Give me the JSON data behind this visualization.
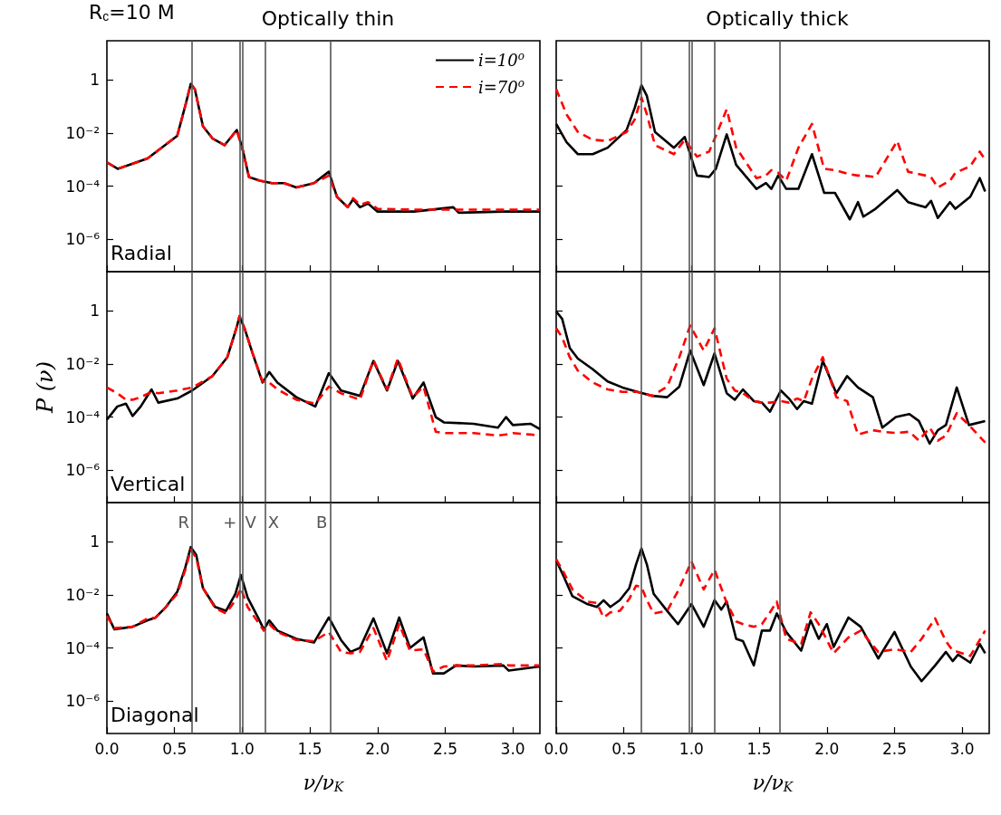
{
  "chart_data": [
    {
      "type": "line",
      "title": "Optically thin",
      "annotations": [
        "R$_{c}$=10 M",
        "Radial"
      ],
      "legend": "top right",
      "log": true,
      "marker": "none",
      "tick_labels": "y",
      "xlim": [
        0,
        3.2
      ],
      "ylim": [
        6e-08,
        30
      ],
      "xticks": [
        {
          "value": 0,
          "label": null
        },
        {
          "value": 0.5,
          "label": null
        },
        {
          "value": 1,
          "label": null
        },
        {
          "value": 1.5,
          "label": null
        },
        {
          "value": 2,
          "label": null
        },
        {
          "value": 2.5,
          "label": null
        },
        {
          "value": 3,
          "label": null
        }
      ],
      "yticks": [
        {
          "value": 1,
          "label": "1"
        },
        {
          "value": 0.01,
          "label": "10⁻²"
        },
        {
          "value": 0.0001,
          "label": "10⁻⁴"
        },
        {
          "value": 1e-06,
          "label": "10⁻⁶"
        }
      ],
      "ref_lines": [
        {
          "axis": "x",
          "value": 0.63,
          "color": "#555555"
        },
        {
          "axis": "x",
          "value": 0.98,
          "color": "#555555"
        },
        {
          "axis": "x",
          "value": 1.0,
          "color": "#555555"
        },
        {
          "axis": "x",
          "value": 1.17,
          "color": "#555555"
        },
        {
          "axis": "x",
          "value": 1.65,
          "color": "#555555"
        }
      ],
      "x": [
        0,
        0.08,
        0.3,
        0.52,
        0.58,
        0.62,
        0.65,
        0.71,
        0.78,
        0.87,
        0.96,
        1.0,
        1.05,
        1.13,
        1.22,
        1.31,
        1.4,
        1.53,
        1.64,
        1.7,
        1.78,
        1.82,
        1.87,
        1.93,
        2.0,
        2.27,
        2.56,
        2.6,
        2.93,
        3.2
      ],
      "series": [
        {
          "name": "i=10$^{o}$",
          "color": "#000000",
          "line_style": "solid",
          "values": [
            0.00079,
            0.00045,
            0.0011,
            0.0079,
            0.11,
            0.71,
            0.45,
            0.018,
            0.0063,
            0.0035,
            0.013,
            0.0028,
            0.00022,
            0.00016,
            0.00013,
            0.00013,
            8.9e-05,
            0.00013,
            0.00035,
            4e-05,
            1.6e-05,
            3.2e-05,
            1.6e-05,
            2.2e-05,
            1.1e-05,
            1.1e-05,
            1.6e-05,
            1e-05,
            1.1e-05,
            1.1e-05
          ]
        },
        {
          "name": "i=70$^{o}$",
          "color": "#ff0000",
          "line_style": "dashed",
          "values": [
            0.00079,
            0.00045,
            0.0011,
            0.0079,
            0.11,
            0.71,
            0.45,
            0.018,
            0.0063,
            0.0035,
            0.013,
            0.0028,
            0.00022,
            0.00016,
            0.00013,
            0.00013,
            8.9e-05,
            0.00013,
            0.00025,
            4e-05,
            1.6e-05,
            3.5e-05,
            2e-05,
            2.5e-05,
            1.4e-05,
            1.3e-05,
            1.3e-05,
            1.3e-05,
            1.3e-05,
            1.3e-05
          ]
        }
      ]
    },
    {
      "type": "line",
      "title": "Optically thick",
      "log": true,
      "marker": "none",
      "tick_labels": false,
      "xlim": [
        0,
        3.2
      ],
      "ylim": [
        6e-08,
        30
      ],
      "xticks": [
        {
          "value": 0,
          "label": null
        },
        {
          "value": 0.5,
          "label": null
        },
        {
          "value": 1,
          "label": null
        },
        {
          "value": 1.5,
          "label": null
        },
        {
          "value": 2,
          "label": null
        },
        {
          "value": 2.5,
          "label": null
        },
        {
          "value": 3,
          "label": null
        }
      ],
      "yticks": [
        {
          "value": 1,
          "label": null
        },
        {
          "value": 0.01,
          "label": null
        },
        {
          "value": 0.0001,
          "label": null
        },
        {
          "value": 1e-06,
          "label": null
        }
      ],
      "ref_lines": [
        {
          "axis": "x",
          "value": 0.63,
          "color": "#555555"
        },
        {
          "axis": "x",
          "value": 0.98,
          "color": "#555555"
        },
        {
          "axis": "x",
          "value": 1.0,
          "color": "#555555"
        },
        {
          "axis": "x",
          "value": 1.17,
          "color": "#555555"
        },
        {
          "axis": "x",
          "value": 1.65,
          "color": "#555555"
        }
      ],
      "x": [
        0,
        0.077,
        0.16,
        0.27,
        0.38,
        0.52,
        0.58,
        0.63,
        0.67,
        0.73,
        0.87,
        0.95,
        1.04,
        1.13,
        1.18,
        1.26,
        1.33,
        1.48,
        1.55,
        1.59,
        1.64,
        1.7,
        1.79,
        1.89,
        1.98,
        2.06,
        2.17,
        2.23,
        2.27,
        2.36,
        2.52,
        2.6,
        2.73,
        2.77,
        2.82,
        2.91,
        2.95,
        3.06,
        3.13,
        3.17
      ],
      "series": [
        {
          "color": "#000000",
          "line_style": "solid",
          "values": [
            0.022,
            0.0045,
            0.0016,
            0.0016,
            0.0028,
            0.013,
            0.089,
            0.63,
            0.25,
            0.011,
            0.0028,
            0.0071,
            0.00025,
            0.00022,
            0.00045,
            0.0089,
            0.00063,
            7.9e-05,
            0.00013,
            7.9e-05,
            0.00025,
            7.9e-05,
            7.9e-05,
            0.0016,
            5.6e-05,
            5.6e-05,
            5.6e-06,
            2.5e-05,
            7.1e-06,
            1.4e-05,
            7.1e-05,
            2.5e-05,
            1.6e-05,
            2.8e-05,
            6.3e-06,
            2.5e-05,
            1.4e-05,
            4e-05,
            0.0002,
            6.3e-05
          ]
        },
        {
          "color": "#ff0000",
          "line_style": "dashed",
          "values": [
            0.45,
            0.05,
            0.011,
            0.0056,
            0.005,
            0.011,
            0.032,
            0.22,
            0.05,
            0.0035,
            0.0016,
            0.0056,
            0.0013,
            0.002,
            0.0079,
            0.079,
            0.0028,
            0.0002,
            0.00025,
            0.0004,
            0.00032,
            0.00016,
            0.0028,
            0.022,
            0.00045,
            0.0004,
            0.00028,
            0.00025,
            0.00025,
            0.00022,
            0.005,
            0.00035,
            0.00025,
            0.00022,
            8.9e-05,
            0.00016,
            0.00032,
            0.00056,
            0.002,
            0.001
          ]
        }
      ]
    },
    {
      "type": "line",
      "ylabel": "P (ν)",
      "annotations": [
        "Vertical"
      ],
      "log": true,
      "marker": "none",
      "tick_labels": "y",
      "xlim": [
        0,
        3.2
      ],
      "ylim": [
        6e-08,
        30
      ],
      "xticks": [
        {
          "value": 0,
          "label": null
        },
        {
          "value": 0.5,
          "label": null
        },
        {
          "value": 1,
          "label": null
        },
        {
          "value": 1.5,
          "label": null
        },
        {
          "value": 2,
          "label": null
        },
        {
          "value": 2.5,
          "label": null
        },
        {
          "value": 3,
          "label": null
        }
      ],
      "yticks": [
        {
          "value": 1,
          "label": "1"
        },
        {
          "value": 0.01,
          "label": "10⁻²"
        },
        {
          "value": 0.0001,
          "label": "10⁻⁴"
        },
        {
          "value": 1e-06,
          "label": "10⁻⁶"
        }
      ],
      "ref_lines": [
        {
          "axis": "x",
          "value": 0.63,
          "color": "#555555"
        },
        {
          "axis": "x",
          "value": 0.98,
          "color": "#555555"
        },
        {
          "axis": "x",
          "value": 1.0,
          "color": "#555555"
        },
        {
          "axis": "x",
          "value": 1.17,
          "color": "#555555"
        },
        {
          "axis": "x",
          "value": 1.65,
          "color": "#555555"
        }
      ],
      "x": [
        0,
        0.077,
        0.14,
        0.19,
        0.25,
        0.33,
        0.38,
        0.52,
        0.63,
        0.78,
        0.89,
        0.96,
        0.98,
        1.02,
        1.07,
        1.15,
        1.2,
        1.26,
        1.4,
        1.54,
        1.64,
        1.73,
        1.87,
        1.97,
        2.07,
        2.15,
        2.26,
        2.34,
        2.43,
        2.49,
        2.71,
        2.89,
        2.95,
        3.0,
        3.13,
        3.2
      ],
      "series": [
        {
          "color": "#000000",
          "line_style": "solid",
          "values": [
            7.9e-05,
            0.00025,
            0.00032,
            0.00011,
            0.00025,
            0.0011,
            0.00035,
            0.0005,
            0.001,
            0.0035,
            0.018,
            0.25,
            0.63,
            0.2,
            0.032,
            0.002,
            0.005,
            0.002,
            0.00056,
            0.00025,
            0.0045,
            0.001,
            0.00063,
            0.013,
            0.001,
            0.013,
            0.0005,
            0.002,
            0.0001,
            6.3e-05,
            5.6e-05,
            4e-05,
            0.0001,
            5e-05,
            5.6e-05,
            3.5e-05
          ]
        },
        {
          "color": "#ff0000",
          "line_style": "dashed",
          "values": [
            0.0013,
            0.00079,
            0.00045,
            0.00045,
            0.00056,
            0.00089,
            0.00079,
            0.001,
            0.0013,
            0.0035,
            0.018,
            0.25,
            0.63,
            0.2,
            0.032,
            0.0022,
            0.002,
            0.0011,
            0.00045,
            0.00032,
            0.0014,
            0.00079,
            0.00045,
            0.014,
            0.0011,
            0.016,
            0.00056,
            0.0014,
            2.8e-05,
            2.5e-05,
            2.5e-05,
            2e-05,
            2.2e-05,
            2.5e-05,
            2.2e-05,
            2e-05
          ]
        }
      ]
    },
    {
      "type": "line",
      "log": true,
      "marker": "none",
      "tick_labels": false,
      "xlim": [
        0,
        3.2
      ],
      "ylim": [
        6e-08,
        30
      ],
      "xticks": [
        {
          "value": 0,
          "label": null
        },
        {
          "value": 0.5,
          "label": null
        },
        {
          "value": 1,
          "label": null
        },
        {
          "value": 1.5,
          "label": null
        },
        {
          "value": 2,
          "label": null
        },
        {
          "value": 2.5,
          "label": null
        },
        {
          "value": 3,
          "label": null
        }
      ],
      "yticks": [
        {
          "value": 1,
          "label": null
        },
        {
          "value": 0.01,
          "label": null
        },
        {
          "value": 0.0001,
          "label": null
        },
        {
          "value": 1e-06,
          "label": null
        }
      ],
      "ref_lines": [
        {
          "axis": "x",
          "value": 0.63,
          "color": "#555555"
        },
        {
          "axis": "x",
          "value": 0.98,
          "color": "#555555"
        },
        {
          "axis": "x",
          "value": 1.0,
          "color": "#555555"
        },
        {
          "axis": "x",
          "value": 1.17,
          "color": "#555555"
        },
        {
          "axis": "x",
          "value": 1.65,
          "color": "#555555"
        }
      ],
      "x": [
        0,
        0.044,
        0.1,
        0.16,
        0.27,
        0.38,
        0.49,
        0.6,
        0.71,
        0.82,
        0.91,
        0.99,
        1.09,
        1.17,
        1.26,
        1.32,
        1.38,
        1.46,
        1.52,
        1.58,
        1.66,
        1.72,
        1.78,
        1.83,
        1.89,
        1.97,
        2.07,
        2.15,
        2.23,
        2.34,
        2.41,
        2.51,
        2.61,
        2.68,
        2.76,
        2.82,
        2.88,
        2.96,
        3.05,
        3.17
      ],
      "series": [
        {
          "color": "#000000",
          "line_style": "solid",
          "values": [
            0.95,
            0.5,
            0.04,
            0.016,
            0.0063,
            0.0022,
            0.0013,
            0.00089,
            0.00063,
            0.00056,
            0.0014,
            0.032,
            0.0016,
            0.025,
            0.00079,
            0.00045,
            0.0011,
            0.0004,
            0.00035,
            0.00016,
            0.001,
            0.0005,
            0.0002,
            0.0004,
            0.00032,
            0.013,
            0.00079,
            0.0035,
            0.0013,
            0.00056,
            4e-05,
            0.0001,
            0.00013,
            7.1e-05,
            1e-05,
            3.2e-05,
            5e-05,
            0.0013,
            5e-05,
            7.1e-05
          ]
        },
        {
          "color": "#ff0000",
          "line_style": "dashed",
          "values": [
            0.22,
            0.1,
            0.018,
            0.0056,
            0.002,
            0.0011,
            0.00089,
            0.00089,
            0.00063,
            0.0014,
            0.018,
            0.28,
            0.032,
            0.22,
            0.0028,
            0.001,
            0.00079,
            0.0004,
            0.00035,
            0.00035,
            0.0004,
            0.00035,
            0.0005,
            0.0004,
            0.0028,
            0.018,
            0.00056,
            0.0004,
            2.2e-05,
            3.2e-05,
            2.8e-05,
            2.5e-05,
            2.8e-05,
            1.3e-05,
            4e-05,
            1.3e-05,
            2e-05,
            0.00014,
            5e-05,
            1.1e-05
          ]
        }
      ]
    },
    {
      "type": "line",
      "xlabel": "ν/ν$_{K}$",
      "annotations": [
        "Diagonal"
      ],
      "log": true,
      "marker": "none",
      "xlim": [
        0,
        3.2
      ],
      "ylim": [
        6e-08,
        30
      ],
      "xticks": [
        {
          "value": 0,
          "label": "0.0"
        },
        0.5,
        {
          "value": 1,
          "label": "1.0"
        },
        1.5,
        {
          "value": 2,
          "label": "2.0"
        },
        2.5,
        {
          "value": 3,
          "label": "3.0"
        }
      ],
      "yticks": [
        {
          "value": 1,
          "label": "1"
        },
        {
          "value": 0.01,
          "label": "10⁻²"
        },
        {
          "value": 0.0001,
          "label": "10⁻⁴"
        },
        {
          "value": 1e-06,
          "label": "10⁻⁶"
        }
      ],
      "ref_lines": [
        {
          "axis": "x",
          "value": 0.63,
          "label": "R",
          "color": "#555555"
        },
        {
          "axis": "x",
          "value": 0.98,
          "label": "+",
          "color": "#555555"
        },
        {
          "axis": "x",
          "value": 1.0,
          "label": "V",
          "color": "#555555"
        },
        {
          "axis": "x",
          "value": 1.17,
          "label": "X",
          "color": "#555555"
        },
        {
          "axis": "x",
          "value": 1.65,
          "label": "B",
          "color": "#555555"
        }
      ],
      "x": [
        0,
        0.055,
        0.19,
        0.3,
        0.36,
        0.43,
        0.52,
        0.58,
        0.62,
        0.66,
        0.71,
        0.8,
        0.88,
        0.95,
        0.99,
        1.04,
        1.12,
        1.16,
        1.2,
        1.26,
        1.4,
        1.53,
        1.64,
        1.73,
        1.8,
        1.87,
        1.97,
        2.07,
        2.16,
        2.24,
        2.34,
        2.41,
        2.49,
        2.58,
        2.71,
        2.93,
        2.97,
        3.2
      ],
      "series": [
        {
          "color": "#000000",
          "line_style": "solid",
          "values": [
            0.002,
            0.0005,
            0.00063,
            0.0011,
            0.0014,
            0.0032,
            0.013,
            0.11,
            0.63,
            0.32,
            0.018,
            0.0035,
            0.0025,
            0.011,
            0.056,
            0.0079,
            0.0013,
            0.0005,
            0.0011,
            0.00045,
            0.00022,
            0.00016,
            0.0014,
            0.0002,
            7.1e-05,
            0.0001,
            0.0013,
            6.3e-05,
            0.0014,
            0.0001,
            0.00025,
            1.1e-05,
            1.1e-05,
            2.2e-05,
            2e-05,
            2.2e-05,
            1.4e-05,
            2e-05
          ]
        },
        {
          "color": "#ff0000",
          "line_style": "dashed",
          "values": [
            0.0016,
            0.00056,
            0.00063,
            0.0013,
            0.0014,
            0.0032,
            0.011,
            0.089,
            0.5,
            0.25,
            0.018,
            0.0032,
            0.002,
            0.0063,
            0.018,
            0.0035,
            0.00089,
            0.00045,
            0.00079,
            0.0004,
            0.0002,
            0.00018,
            0.0004,
            7.1e-05,
            6.3e-05,
            7.1e-05,
            0.00056,
            3.2e-05,
            0.00079,
            7.9e-05,
            8.9e-05,
            1.3e-05,
            2e-05,
            2.2e-05,
            2.2e-05,
            2.5e-05,
            2.2e-05,
            2.2e-05
          ]
        }
      ]
    },
    {
      "type": "line",
      "xlabel": "ν/ν$_{K}$",
      "log": true,
      "marker": "none",
      "tick_labels": "x",
      "xlim": [
        0,
        3.2
      ],
      "ylim": [
        6e-08,
        30
      ],
      "xticks": [
        {
          "value": 0,
          "label": "0.0"
        },
        0.5,
        {
          "value": 1,
          "label": "1.0"
        },
        1.5,
        {
          "value": 2,
          "label": "2.0"
        },
        2.5,
        {
          "value": 3,
          "label": "3.0"
        }
      ],
      "yticks": [
        {
          "value": 1,
          "label": null
        },
        {
          "value": 0.01,
          "label": null
        },
        {
          "value": 0.0001,
          "label": null
        },
        {
          "value": 1e-06,
          "label": null
        }
      ],
      "ref_lines": [
        {
          "axis": "x",
          "value": 0.63,
          "color": "#555555"
        },
        {
          "axis": "x",
          "value": 0.98,
          "color": "#555555"
        },
        {
          "axis": "x",
          "value": 1.0,
          "color": "#555555"
        },
        {
          "axis": "x",
          "value": 1.17,
          "color": "#555555"
        },
        {
          "axis": "x",
          "value": 1.65,
          "color": "#555555"
        }
      ],
      "x": [
        0,
        0.055,
        0.12,
        0.23,
        0.3,
        0.35,
        0.4,
        0.47,
        0.54,
        0.59,
        0.63,
        0.67,
        0.72,
        0.82,
        0.9,
        1.0,
        1.09,
        1.17,
        1.22,
        1.26,
        1.33,
        1.38,
        1.46,
        1.52,
        1.58,
        1.63,
        1.7,
        1.81,
        1.88,
        1.94,
        2.0,
        2.05,
        2.16,
        2.25,
        2.38,
        2.5,
        2.62,
        2.7,
        2.8,
        2.88,
        2.93,
        2.97,
        3.06,
        3.13,
        3.17
      ],
      "series": [
        {
          "color": "#000000",
          "line_style": "solid",
          "values": [
            0.2,
            0.05,
            0.0089,
            0.0045,
            0.0035,
            0.0063,
            0.0035,
            0.0063,
            0.018,
            0.14,
            0.56,
            0.14,
            0.011,
            0.0025,
            0.00079,
            0.0045,
            0.00063,
            0.0063,
            0.0028,
            0.0056,
            0.00022,
            0.00018,
            2.2e-05,
            0.00045,
            0.00045,
            0.002,
            0.0004,
            7.9e-05,
            0.0011,
            0.00022,
            0.00079,
            0.00011,
            0.0014,
            0.00063,
            4e-05,
            0.0004,
            2e-05,
            5.6e-06,
            2.2e-05,
            7.1e-05,
            3.2e-05,
            5.6e-05,
            2.8e-05,
            0.00014,
            6.3e-05
          ]
        },
        {
          "color": "#ff0000",
          "line_style": "dashed",
          "values": [
            0.22,
            0.071,
            0.016,
            0.0056,
            0.005,
            0.0014,
            0.0022,
            0.0025,
            0.0071,
            0.022,
            0.02,
            0.0063,
            0.002,
            0.0025,
            0.014,
            0.18,
            0.016,
            0.089,
            0.018,
            0.005,
            0.001,
            0.00079,
            0.00063,
            0.00079,
            0.0022,
            0.0056,
            0.00022,
            0.00014,
            0.0022,
            0.00079,
            0.0002,
            6.3e-05,
            0.00025,
            0.00045,
            7.1e-05,
            8.9e-05,
            7.1e-05,
            0.00022,
            0.0013,
            0.00018,
            7.9e-05,
            7.1e-05,
            5e-05,
            0.0002,
            0.00045
          ]
        }
      ]
    }
  ]
}
